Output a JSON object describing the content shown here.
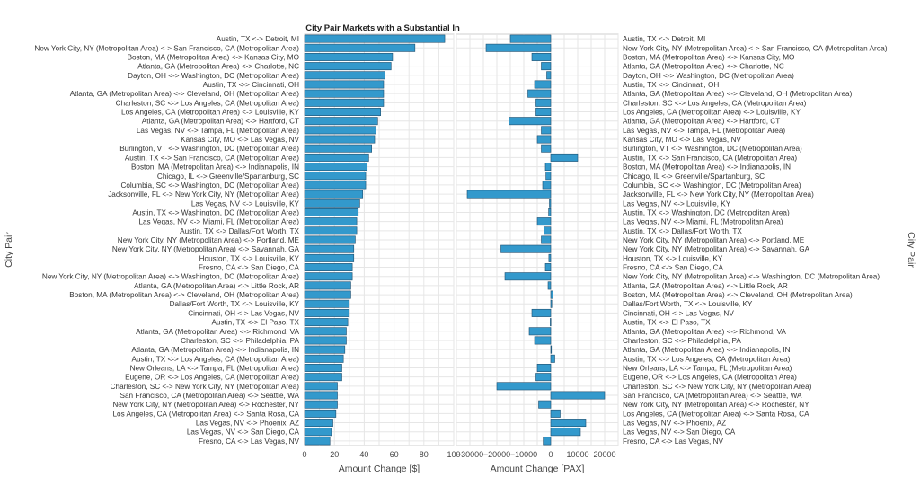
{
  "chart_data": {
    "type": "bar",
    "orientation": "horizontal",
    "title": "City Pair Markets with a Substantial In",
    "ylabel": "City Pair",
    "bar_color": "#3399cc",
    "grid": true,
    "categories": [
      "Austin, TX <-> Detroit, MI",
      "New York City, NY (Metropolitan Area) <-> San Francisco, CA (Metropolitan Area)",
      "Boston, MA (Metropolitan Area) <-> Kansas City, MO",
      "Atlanta, GA (Metropolitan Area) <-> Charlotte, NC",
      "Dayton, OH <-> Washington, DC (Metropolitan Area)",
      "Austin, TX <-> Cincinnati, OH",
      "Atlanta, GA (Metropolitan Area) <-> Cleveland, OH (Metropolitan Area)",
      "Charleston, SC <-> Los Angeles, CA (Metropolitan Area)",
      "Los Angeles, CA (Metropolitan Area) <-> Louisville, KY",
      "Atlanta, GA (Metropolitan Area) <-> Hartford, CT",
      "Las Vegas, NV <-> Tampa, FL (Metropolitan Area)",
      "Kansas City, MO <-> Las Vegas, NV",
      "Burlington, VT <-> Washington, DC (Metropolitan Area)",
      "Austin, TX <-> San Francisco, CA (Metropolitan Area)",
      "Boston, MA (Metropolitan Area) <-> Indianapolis, IN",
      "Chicago, IL <-> Greenville/Spartanburg, SC",
      "Columbia, SC <-> Washington, DC (Metropolitan Area)",
      "Jacksonville, FL <-> New York City, NY (Metropolitan Area)",
      "Las Vegas, NV <-> Louisville, KY",
      "Austin, TX <-> Washington, DC (Metropolitan Area)",
      "Las Vegas, NV <-> Miami, FL (Metropolitan Area)",
      "Austin, TX <-> Dallas/Fort Worth, TX",
      "New York City, NY (Metropolitan Area) <-> Portland, ME",
      "New York City, NY (Metropolitan Area) <-> Savannah, GA",
      "Houston, TX <-> Louisville, KY",
      "Fresno, CA <-> San Diego, CA",
      "New York City, NY (Metropolitan Area) <-> Washington, DC (Metropolitan Area)",
      "Atlanta, GA (Metropolitan Area) <-> Little Rock, AR",
      "Boston, MA (Metropolitan Area) <-> Cleveland, OH (Metropolitan Area)",
      "Dallas/Fort Worth, TX <-> Louisville, KY",
      "Cincinnati, OH <-> Las Vegas, NV",
      "Austin, TX <-> El Paso, TX",
      "Atlanta, GA (Metropolitan Area) <-> Richmond, VA",
      "Charleston, SC <-> Philadelphia, PA",
      "Atlanta, GA (Metropolitan Area) <-> Indianapolis, IN",
      "Austin, TX <-> Los Angeles, CA (Metropolitan Area)",
      "New Orleans, LA <-> Tampa, FL (Metropolitan Area)",
      "Eugene, OR <-> Los Angeles, CA (Metropolitan Area)",
      "Charleston, SC <-> New York City, NY (Metropolitan Area)",
      "San Francisco, CA (Metropolitan Area) <-> Seattle, WA",
      "New York City, NY (Metropolitan Area) <-> Rochester, NY",
      "Los Angeles, CA (Metropolitan Area) <-> Santa Rosa, CA",
      "Las Vegas, NV <-> Phoenix, AZ",
      "Las Vegas, NV <-> San Diego, CA",
      "Fresno, CA <-> Las Vegas, NV"
    ],
    "panels": [
      {
        "xlabel": "Amount Change [$]",
        "xlim": [
          0,
          100
        ],
        "xticks": [
          0,
          20,
          40,
          60,
          80,
          100
        ],
        "tick_labels": [
          "0",
          "20",
          "40",
          "60",
          "80",
          "100"
        ],
        "values": [
          94,
          74,
          59,
          58,
          54,
          53,
          53,
          53,
          51,
          49,
          48,
          47,
          45,
          43,
          42,
          41,
          41,
          39,
          37,
          36,
          35,
          35,
          34,
          33,
          33,
          32,
          32,
          31,
          31,
          30,
          30,
          29,
          28,
          28,
          27,
          26,
          25,
          25,
          22,
          22,
          22,
          21,
          19,
          18,
          17
        ]
      },
      {
        "xlabel": "Amount Change [PAX]",
        "xlim": [
          -35000,
          25000
        ],
        "xticks": [
          -30000,
          -20000,
          -10000,
          0,
          10000,
          20000
        ],
        "tick_labels": [
          "−30000",
          "−20000",
          "−10000",
          "0",
          "10000",
          "20000"
        ],
        "values": [
          -15000,
          -24000,
          -7000,
          -3500,
          -1500,
          -6000,
          -8500,
          -5500,
          -5500,
          -15500,
          -3500,
          -5000,
          -3500,
          10000,
          -2000,
          -1800,
          -3000,
          -31000,
          -500,
          -800,
          -5000,
          -2500,
          -3500,
          -18500,
          -700,
          -2000,
          -17000,
          -1000,
          800,
          400,
          -7000,
          -200,
          -8000,
          -6000,
          200,
          1500,
          -5000,
          -5500,
          -20000,
          20000,
          -4500,
          3500,
          13000,
          11000,
          -2800
        ]
      }
    ]
  }
}
